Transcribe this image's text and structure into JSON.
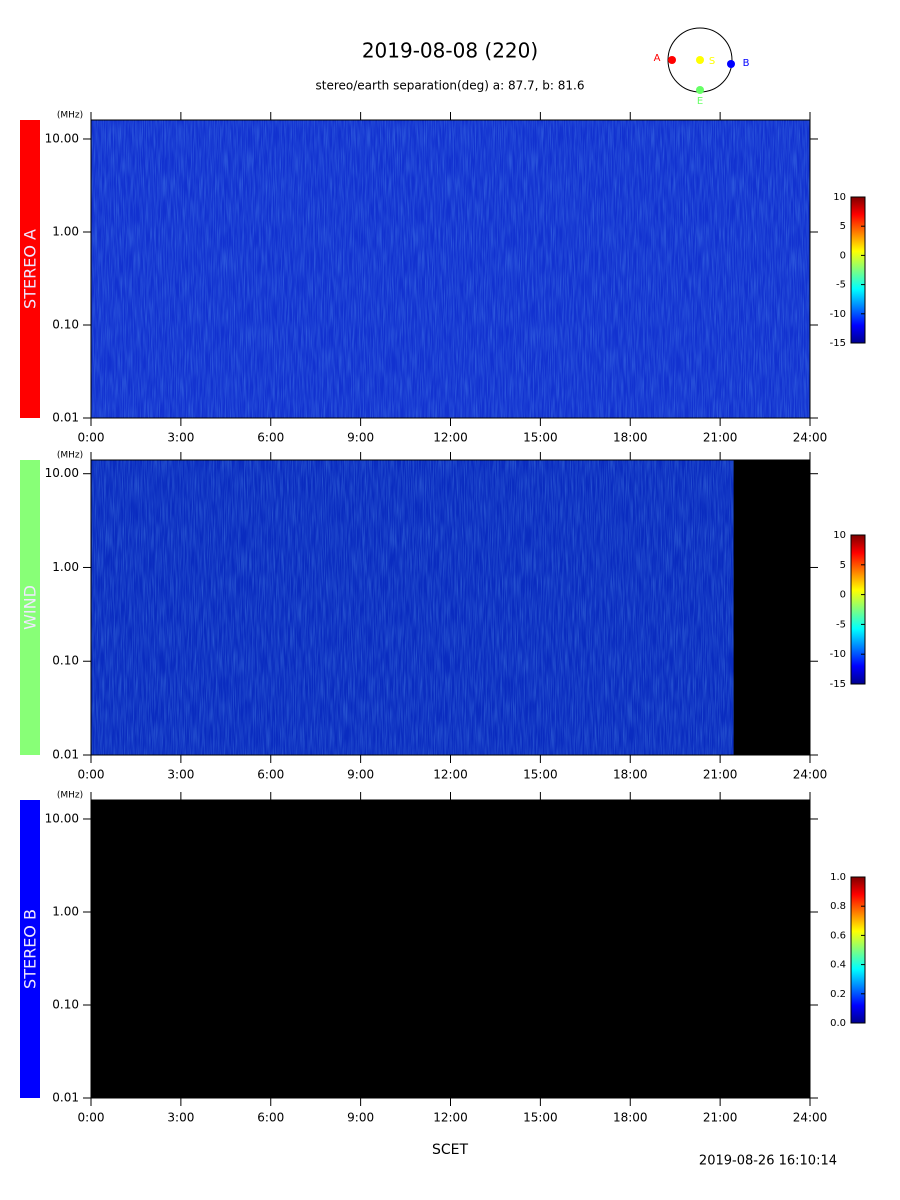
{
  "title": "2019-08-08 (220)",
  "subtitle": "stereo/earth separation(deg) a:  87.7, b:  81.6",
  "xlabel": "SCET",
  "timestamp": "2019-08-26 16:10:14",
  "orbit_labels": [
    {
      "text": "A",
      "color": "#ff0000"
    },
    {
      "text": "S",
      "color": "#ffff00"
    },
    {
      "text": "B",
      "color": "#0000ff"
    },
    {
      "text": "E",
      "color": "#66ff66"
    }
  ],
  "chart_data": [
    {
      "type": "spectrogram",
      "label": "STEREO A",
      "label_color": "#ff0000",
      "background": "#1232d0",
      "ylabel": "(MHz)",
      "ylog": true,
      "ylim": [
        0.01,
        16
      ],
      "yticks": [
        {
          "value": 10,
          "label": "10.00"
        },
        {
          "value": 1,
          "label": "1.00"
        },
        {
          "value": 0.1,
          "label": "0.10"
        },
        {
          "value": 0.01,
          "label": "0.01"
        }
      ],
      "xlim": [
        0,
        24
      ],
      "xticks": [
        {
          "value": 0,
          "label": "0:00"
        },
        {
          "value": 3,
          "label": "3:00"
        },
        {
          "value": 6,
          "label": "6:00"
        },
        {
          "value": 9,
          "label": "9:00"
        },
        {
          "value": 12,
          "label": "12:00"
        },
        {
          "value": 15,
          "label": "15:00"
        },
        {
          "value": 18,
          "label": "18:00"
        },
        {
          "value": 21,
          "label": "21:00"
        },
        {
          "value": 24,
          "label": "24:00"
        }
      ],
      "colorbar": {
        "lim": [
          -15,
          10
        ],
        "ticks": [
          10,
          5,
          0,
          -5,
          -10,
          -15
        ]
      }
    },
    {
      "type": "spectrogram",
      "label": "WIND",
      "label_color": "#88ff77",
      "background": "#0a2cc0",
      "ylabel": "(MHz)",
      "ylog": true,
      "ylim": [
        0.01,
        14
      ],
      "yticks": [
        {
          "value": 10,
          "label": "10.00"
        },
        {
          "value": 1,
          "label": "1.00"
        },
        {
          "value": 0.1,
          "label": "0.10"
        },
        {
          "value": 0.01,
          "label": "0.01"
        }
      ],
      "xlim": [
        0,
        24
      ],
      "xticks": [
        {
          "value": 0,
          "label": "0:00"
        },
        {
          "value": 3,
          "label": "3:00"
        },
        {
          "value": 6,
          "label": "6:00"
        },
        {
          "value": 9,
          "label": "9:00"
        },
        {
          "value": 12,
          "label": "12:00"
        },
        {
          "value": 15,
          "label": "15:00"
        },
        {
          "value": 18,
          "label": "18:00"
        },
        {
          "value": 21,
          "label": "21:00"
        },
        {
          "value": 24,
          "label": "24:00"
        }
      ],
      "no_data_from": 21.45,
      "colorbar": {
        "lim": [
          -15,
          10
        ],
        "ticks": [
          10,
          5,
          0,
          -5,
          -10,
          -15
        ]
      }
    },
    {
      "type": "spectrogram",
      "label": "STEREO B",
      "label_color": "#0000ff",
      "background": "#000000",
      "ylabel": "(MHz)",
      "ylog": true,
      "ylim": [
        0.01,
        16
      ],
      "yticks": [
        {
          "value": 10,
          "label": "10.00"
        },
        {
          "value": 1,
          "label": "1.00"
        },
        {
          "value": 0.1,
          "label": "0.10"
        },
        {
          "value": 0.01,
          "label": "0.01"
        }
      ],
      "xlim": [
        0,
        24
      ],
      "xticks": [
        {
          "value": 0,
          "label": "0:00"
        },
        {
          "value": 3,
          "label": "3:00"
        },
        {
          "value": 6,
          "label": "6:00"
        },
        {
          "value": 9,
          "label": "9:00"
        },
        {
          "value": 12,
          "label": "12:00"
        },
        {
          "value": 15,
          "label": "15:00"
        },
        {
          "value": 18,
          "label": "18:00"
        },
        {
          "value": 21,
          "label": "21:00"
        },
        {
          "value": 24,
          "label": "24:00"
        }
      ],
      "colorbar": {
        "lim": [
          0,
          1
        ],
        "ticks": [
          {
            "value": 1,
            "label": "1.0"
          },
          {
            "value": 0.8,
            "label": "0.8"
          },
          {
            "value": 0.6,
            "label": "0.6"
          },
          {
            "value": 0.4,
            "label": "0.4"
          },
          {
            "value": 0.2,
            "label": "0.2"
          },
          {
            "value": 0,
            "label": "0.0"
          }
        ]
      }
    }
  ]
}
